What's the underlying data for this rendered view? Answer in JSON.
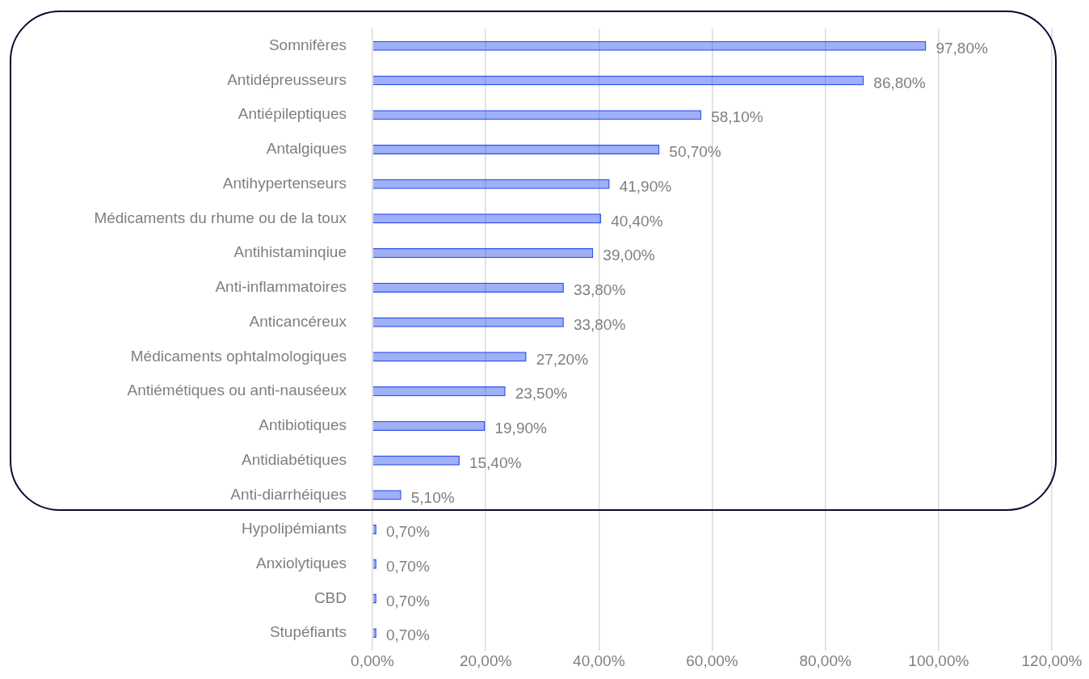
{
  "chart_data": {
    "type": "bar",
    "orientation": "horizontal",
    "categories": [
      "Somnifères",
      "Antidépreusseurs",
      "Antiépileptiques",
      "Antalgiques",
      "Antihypertenseurs",
      "Médicaments du rhume ou de la toux",
      "Antihistaminqiue",
      "Anti-inflammatoires",
      "Anticancéreux",
      "Médicaments ophtalmologiques",
      "Antiémétiques ou anti-nauséeux",
      "Antibiotiques",
      "Antidiabétiques",
      "Anti-diarrhéiques",
      "Hypolipémiants",
      "Anxiolytiques",
      "CBD",
      "Stupéfiants"
    ],
    "values": [
      97.8,
      86.8,
      58.1,
      50.7,
      41.9,
      40.4,
      39.0,
      33.8,
      33.8,
      27.2,
      23.5,
      19.9,
      15.4,
      5.1,
      0.7,
      0.7,
      0.7,
      0.7
    ],
    "value_labels": [
      "97,80%",
      "86,80%",
      "58,10%",
      "50,70%",
      "41,90%",
      "40,40%",
      "39,00%",
      "33,80%",
      "33,80%",
      "27,20%",
      "23,50%",
      "19,90%",
      "15,40%",
      "5,10%",
      "0,70%",
      "0,70%",
      "0,70%",
      "0,70%"
    ],
    "color": "#3355ee",
    "xlim": [
      0,
      120
    ],
    "xticks": [
      {
        "value": 0,
        "label": "0,00%"
      },
      {
        "value": 20,
        "label": "20,00%"
      },
      {
        "value": 40,
        "label": "40,00%"
      },
      {
        "value": 60,
        "label": "60,00%"
      },
      {
        "value": 80,
        "label": "80,00%"
      },
      {
        "value": 100,
        "label": "100,00%"
      },
      {
        "value": 120,
        "label": "120,00%"
      }
    ],
    "grid": "x",
    "legend": false
  }
}
